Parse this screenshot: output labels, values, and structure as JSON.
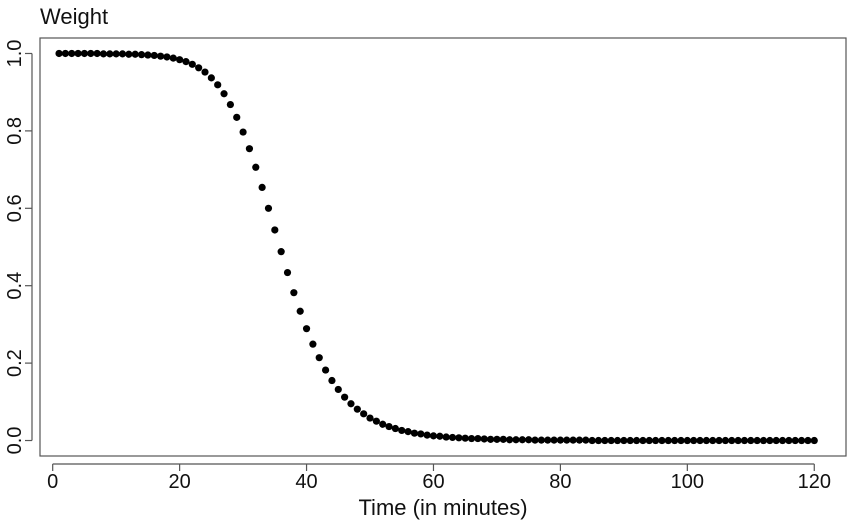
{
  "chart_data": {
    "type": "scatter",
    "title": "Weight",
    "xlabel": "Time (in minutes)",
    "ylabel": "",
    "xlim": [
      -2,
      125
    ],
    "ylim": [
      -0.04,
      1.04
    ],
    "xticks": [
      0,
      20,
      40,
      60,
      80,
      100,
      120
    ],
    "yticks": [
      0.0,
      0.2,
      0.4,
      0.6,
      0.8,
      1.0
    ],
    "xtick_labels": [
      "0",
      "20",
      "40",
      "60",
      "80",
      "100",
      "120"
    ],
    "ytick_labels": [
      "0.0",
      "0.2",
      "0.4",
      "0.6",
      "0.8",
      "1.0"
    ],
    "grid": false,
    "legend": "none",
    "colors": {
      "points": "#000000",
      "axes": "#555555",
      "text": "#111111"
    },
    "series": [
      {
        "x": [
          1,
          2,
          3,
          4,
          5,
          6,
          7,
          8,
          9,
          10,
          11,
          12,
          13,
          14,
          15,
          16,
          17,
          18,
          19,
          20,
          21,
          22,
          23,
          24,
          25,
          26,
          27,
          28,
          29,
          30,
          31,
          32,
          33,
          34,
          35,
          36,
          37,
          38,
          39,
          40,
          41,
          42,
          43,
          44,
          45,
          46,
          47,
          48,
          49,
          50,
          51,
          52,
          53,
          54,
          55,
          56,
          57,
          58,
          59,
          60,
          61,
          62,
          63,
          64,
          65,
          66,
          67,
          68,
          69,
          70,
          71,
          72,
          73,
          74,
          75,
          76,
          77,
          78,
          79,
          80,
          81,
          82,
          83,
          84,
          85,
          86,
          87,
          88,
          89,
          90,
          91,
          92,
          93,
          94,
          95,
          96,
          97,
          98,
          99,
          100,
          101,
          102,
          103,
          104,
          105,
          106,
          107,
          108,
          109,
          110,
          111,
          112,
          113,
          114,
          115,
          116,
          117,
          118,
          119,
          120
        ],
        "y": [
          1.0,
          1.0,
          1.0,
          1.0,
          1.0,
          1.0,
          1.0,
          0.999,
          0.999,
          0.999,
          0.999,
          0.998,
          0.998,
          0.997,
          0.996,
          0.995,
          0.993,
          0.991,
          0.988,
          0.984,
          0.979,
          0.972,
          0.963,
          0.952,
          0.937,
          0.919,
          0.896,
          0.868,
          0.835,
          0.797,
          0.754,
          0.706,
          0.654,
          0.6,
          0.544,
          0.488,
          0.434,
          0.382,
          0.334,
          0.289,
          0.249,
          0.214,
          0.182,
          0.155,
          0.132,
          0.112,
          0.095,
          0.081,
          0.069,
          0.058,
          0.05,
          0.042,
          0.036,
          0.031,
          0.026,
          0.023,
          0.019,
          0.017,
          0.014,
          0.012,
          0.011,
          0.009,
          0.008,
          0.007,
          0.006,
          0.005,
          0.005,
          0.004,
          0.003,
          0.003,
          0.003,
          0.002,
          0.002,
          0.002,
          0.002,
          0.001,
          0.001,
          0.001,
          0.001,
          0.001,
          0.001,
          0.001,
          0.001,
          0.001,
          0.0,
          0.0,
          0.0,
          0.0,
          0.0,
          0.0,
          0.0,
          0.0,
          0.0,
          0.0,
          0.0,
          0.0,
          0.0,
          0.0,
          0.0,
          0.0,
          0.0,
          0.0,
          0.0,
          0.0,
          0.0,
          0.0,
          0.0,
          0.0,
          0.0,
          0.0,
          0.0,
          0.0,
          0.0,
          0.0,
          0.0,
          0.0,
          0.0,
          0.0,
          0.0,
          0.0
        ]
      }
    ]
  }
}
